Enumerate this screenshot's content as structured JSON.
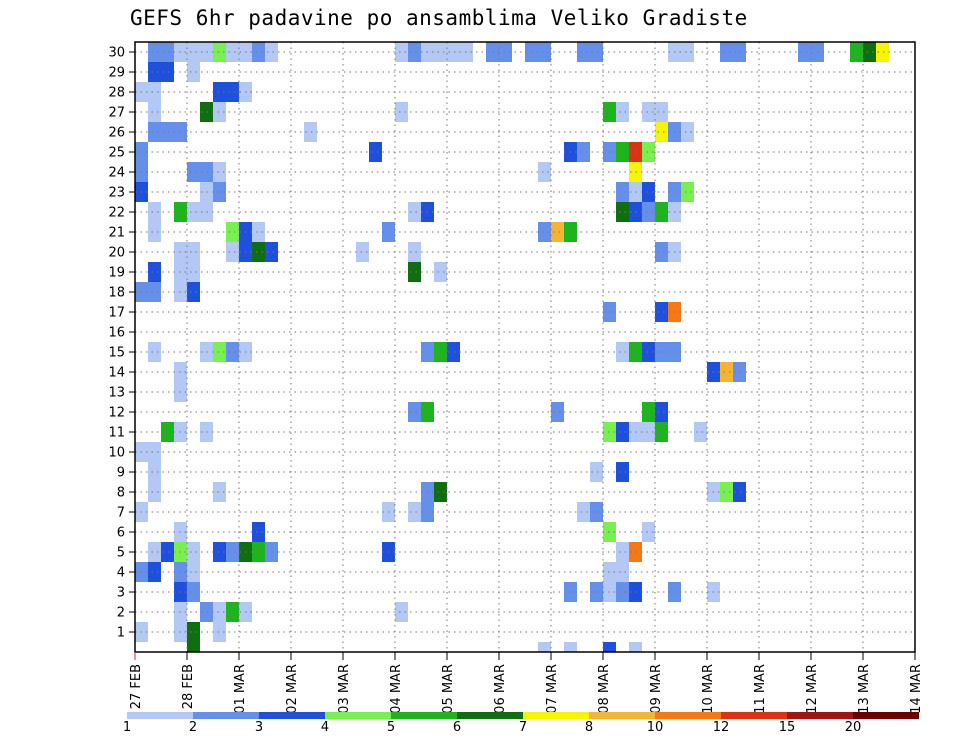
{
  "chart_data": {
    "type": "heatmap",
    "title": "GEFS 6hr padavine po ansamblima Veliko Gradiste",
    "x_tick_labels": [
      "27 FEB",
      "28 FEB",
      "01 MAR",
      "02 MAR",
      "03 MAR",
      "04 MAR",
      "05 MAR",
      "06 MAR",
      "07 MAR",
      "08 MAR",
      "09 MAR",
      "10 MAR",
      "11 MAR",
      "12 MAR",
      "13 MAR",
      "14 MAR"
    ],
    "y_tick_labels": [
      "1",
      "2",
      "3",
      "4",
      "5",
      "6",
      "7",
      "8",
      "9",
      "10",
      "11",
      "12",
      "13",
      "14",
      "15",
      "16",
      "17",
      "18",
      "19",
      "20",
      "21",
      "22",
      "23",
      "24",
      "25",
      "26",
      "27",
      "28",
      "29",
      "30"
    ],
    "x_unit_note": "x = days since 27 FEB 00Z, 6-hour steps",
    "xlim": [
      0,
      15
    ],
    "ylim": [
      0.5,
      30.5
    ],
    "grid": true,
    "legend_position": "bottom",
    "legend_labels": [
      "1",
      "2",
      "3",
      "4",
      "5",
      "6",
      "7",
      "8",
      "10",
      "12",
      "15",
      "20"
    ],
    "legend_colors": [
      "#b4c8f5",
      "#6490eb",
      "#1e50dc",
      "#78f050",
      "#1eb41e",
      "#0f6e0f",
      "#f5f500",
      "#f5b432",
      "#f57814",
      "#dc3214",
      "#a01414",
      "#6e0000"
    ],
    "cells": [
      [
        30,
        1,
        1
      ],
      [
        30,
        2,
        1
      ],
      [
        30,
        3,
        0
      ],
      [
        30,
        4,
        0
      ],
      [
        30,
        5,
        0
      ],
      [
        30,
        6,
        2
      ],
      [
        30,
        6,
        3
      ],
      [
        30,
        7,
        0
      ],
      [
        30,
        8,
        0
      ],
      [
        30,
        9,
        1
      ],
      [
        30,
        10,
        0
      ],
      [
        30,
        20,
        0
      ],
      [
        30,
        21,
        0
      ],
      [
        30,
        21,
        1
      ],
      [
        30,
        22,
        0
      ],
      [
        30,
        23,
        0
      ],
      [
        30,
        24,
        0
      ],
      [
        30,
        25,
        0
      ],
      [
        30,
        27,
        1
      ],
      [
        30,
        28,
        1
      ],
      [
        30,
        30,
        1
      ],
      [
        30,
        31,
        1
      ],
      [
        30,
        34,
        1
      ],
      [
        30,
        35,
        1
      ],
      [
        30,
        41,
        0
      ],
      [
        30,
        42,
        0
      ],
      [
        30,
        45,
        1
      ],
      [
        30,
        46,
        1
      ],
      [
        30,
        51,
        1
      ],
      [
        30,
        52,
        1
      ],
      [
        30,
        55,
        4
      ],
      [
        30,
        56,
        5
      ],
      [
        30,
        57,
        6
      ],
      [
        29,
        1,
        2
      ],
      [
        29,
        2,
        2
      ],
      [
        29,
        4,
        0
      ],
      [
        28,
        0,
        0
      ],
      [
        28,
        1,
        0
      ],
      [
        28,
        6,
        2
      ],
      [
        28,
        7,
        2
      ],
      [
        28,
        8,
        0
      ],
      [
        27,
        1,
        0
      ],
      [
        27,
        5,
        5
      ],
      [
        27,
        6,
        0
      ],
      [
        27,
        20,
        0
      ],
      [
        27,
        36,
        4
      ],
      [
        27,
        37,
        0
      ],
      [
        27,
        39,
        0
      ],
      [
        27,
        40,
        0
      ],
      [
        26,
        1,
        1
      ],
      [
        26,
        2,
        1
      ],
      [
        26,
        3,
        1
      ],
      [
        26,
        13,
        0
      ],
      [
        26,
        40,
        6
      ],
      [
        26,
        41,
        1
      ],
      [
        26,
        42,
        0
      ],
      [
        25,
        0,
        1
      ],
      [
        25,
        18,
        2
      ],
      [
        25,
        33,
        2
      ],
      [
        25,
        34,
        1
      ],
      [
        25,
        36,
        1
      ],
      [
        25,
        37,
        4
      ],
      [
        25,
        38,
        9
      ],
      [
        25,
        39,
        3
      ],
      [
        24,
        0,
        1
      ],
      [
        24,
        4,
        1
      ],
      [
        24,
        5,
        1
      ],
      [
        24,
        6,
        0
      ],
      [
        24,
        31,
        0
      ],
      [
        24,
        38,
        6
      ],
      [
        23,
        0,
        2
      ],
      [
        23,
        5,
        0
      ],
      [
        23,
        6,
        1
      ],
      [
        23,
        37,
        1
      ],
      [
        23,
        38,
        0
      ],
      [
        23,
        39,
        2
      ],
      [
        23,
        41,
        1
      ],
      [
        23,
        42,
        3
      ],
      [
        22,
        1,
        0
      ],
      [
        22,
        3,
        4
      ],
      [
        22,
        4,
        0
      ],
      [
        22,
        5,
        0
      ],
      [
        22,
        21,
        0
      ],
      [
        22,
        22,
        2
      ],
      [
        22,
        37,
        5
      ],
      [
        22,
        38,
        2
      ],
      [
        22,
        39,
        1
      ],
      [
        22,
        40,
        4
      ],
      [
        22,
        41,
        0
      ],
      [
        21,
        1,
        0
      ],
      [
        21,
        7,
        3
      ],
      [
        21,
        8,
        2
      ],
      [
        21,
        9,
        0
      ],
      [
        21,
        19,
        1
      ],
      [
        21,
        31,
        1
      ],
      [
        21,
        32,
        7
      ],
      [
        21,
        33,
        4
      ],
      [
        20,
        3,
        0
      ],
      [
        20,
        4,
        0
      ],
      [
        20,
        7,
        0
      ],
      [
        20,
        8,
        2
      ],
      [
        20,
        9,
        5
      ],
      [
        20,
        10,
        2
      ],
      [
        20,
        17,
        0
      ],
      [
        20,
        21,
        0
      ],
      [
        20,
        40,
        1
      ],
      [
        20,
        41,
        0
      ],
      [
        19,
        1,
        2
      ],
      [
        19,
        3,
        0
      ],
      [
        19,
        4,
        0
      ],
      [
        19,
        21,
        5
      ],
      [
        19,
        23,
        0
      ],
      [
        18,
        0,
        1
      ],
      [
        18,
        1,
        1
      ],
      [
        18,
        3,
        0
      ],
      [
        18,
        4,
        2
      ],
      [
        17,
        36,
        1
      ],
      [
        17,
        40,
        2
      ],
      [
        17,
        41,
        8
      ],
      [
        15,
        1,
        0
      ],
      [
        15,
        5,
        0
      ],
      [
        15,
        6,
        3
      ],
      [
        15,
        7,
        1
      ],
      [
        15,
        8,
        0
      ],
      [
        15,
        22,
        1
      ],
      [
        15,
        23,
        4
      ],
      [
        15,
        24,
        2
      ],
      [
        15,
        37,
        0
      ],
      [
        15,
        38,
        4
      ],
      [
        15,
        39,
        2
      ],
      [
        15,
        40,
        1
      ],
      [
        15,
        41,
        1
      ],
      [
        14,
        3,
        0
      ],
      [
        14,
        44,
        2
      ],
      [
        14,
        45,
        7
      ],
      [
        14,
        46,
        1
      ],
      [
        13,
        3,
        0
      ],
      [
        12,
        21,
        1
      ],
      [
        12,
        22,
        4
      ],
      [
        12,
        32,
        1
      ],
      [
        12,
        39,
        4
      ],
      [
        12,
        40,
        2
      ],
      [
        11,
        2,
        4
      ],
      [
        11,
        3,
        0
      ],
      [
        11,
        5,
        0
      ],
      [
        11,
        36,
        3
      ],
      [
        11,
        37,
        2
      ],
      [
        11,
        38,
        0
      ],
      [
        11,
        39,
        0
      ],
      [
        11,
        40,
        4
      ],
      [
        11,
        43,
        0
      ],
      [
        10,
        0,
        0
      ],
      [
        10,
        1,
        0
      ],
      [
        9,
        1,
        0
      ],
      [
        9,
        35,
        0
      ],
      [
        9,
        37,
        2
      ],
      [
        8,
        1,
        0
      ],
      [
        8,
        6,
        0
      ],
      [
        8,
        22,
        1
      ],
      [
        8,
        23,
        5
      ],
      [
        8,
        44,
        0
      ],
      [
        8,
        45,
        3
      ],
      [
        8,
        46,
        2
      ],
      [
        7,
        0,
        0
      ],
      [
        7,
        19,
        0
      ],
      [
        7,
        21,
        0
      ],
      [
        7,
        22,
        1
      ],
      [
        7,
        34,
        0
      ],
      [
        7,
        35,
        1
      ],
      [
        6,
        3,
        0
      ],
      [
        6,
        9,
        2
      ],
      [
        6,
        36,
        3
      ],
      [
        6,
        39,
        0
      ],
      [
        5,
        1,
        0
      ],
      [
        5,
        2,
        2
      ],
      [
        5,
        3,
        3
      ],
      [
        5,
        4,
        0
      ],
      [
        5,
        6,
        2
      ],
      [
        5,
        7,
        1
      ],
      [
        5,
        8,
        5
      ],
      [
        5,
        9,
        4
      ],
      [
        5,
        10,
        1
      ],
      [
        5,
        19,
        2
      ],
      [
        5,
        37,
        0
      ],
      [
        5,
        38,
        8
      ],
      [
        4,
        0,
        1
      ],
      [
        4,
        1,
        2
      ],
      [
        4,
        3,
        1
      ],
      [
        4,
        4,
        0
      ],
      [
        4,
        36,
        0
      ],
      [
        4,
        37,
        0
      ],
      [
        3,
        3,
        2
      ],
      [
        3,
        4,
        1
      ],
      [
        3,
        33,
        1
      ],
      [
        3,
        35,
        1
      ],
      [
        3,
        36,
        0
      ],
      [
        3,
        37,
        1
      ],
      [
        3,
        38,
        2
      ],
      [
        3,
        41,
        1
      ],
      [
        3,
        44,
        0
      ],
      [
        2,
        3,
        0
      ],
      [
        2,
        5,
        1
      ],
      [
        2,
        6,
        0
      ],
      [
        2,
        7,
        4
      ],
      [
        2,
        8,
        0
      ],
      [
        2,
        20,
        0
      ],
      [
        1,
        0,
        0
      ],
      [
        1,
        3,
        0
      ],
      [
        1,
        4,
        5
      ],
      [
        1,
        6,
        0
      ],
      [
        0,
        4,
        5
      ],
      [
        0,
        31,
        0
      ],
      [
        0,
        33,
        0
      ],
      [
        0,
        36,
        2
      ],
      [
        0,
        38,
        0
      ]
    ]
  }
}
